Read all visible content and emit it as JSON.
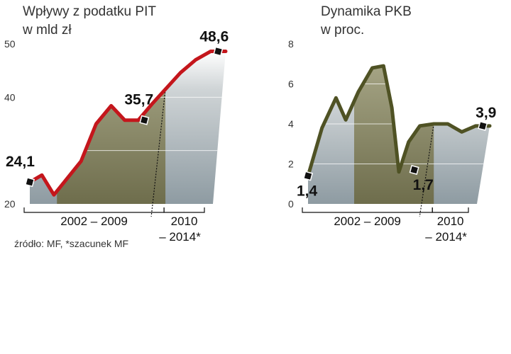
{
  "source_note": "źródło: MF, *szacunek MF",
  "chart_data": [
    {
      "type": "line",
      "title_lines": [
        "Wpływy z podatku PIT",
        "w mld zł"
      ],
      "ylim": [
        20,
        50
      ],
      "yticks": [
        20,
        30,
        40,
        50
      ],
      "ytick_labels": [
        "20",
        "",
        "40",
        "50"
      ],
      "line_color": "#c4161c",
      "periods": [
        {
          "label_lines": [
            "2002 – 2009"
          ],
          "x_range": [
            0,
            9
          ]
        },
        {
          "label_lines": [
            "2010",
            "– 2014*"
          ],
          "x_range": [
            9,
            13
          ]
        }
      ],
      "area_breaks": [
        [
          1.8,
          9
        ]
      ],
      "series": [
        {
          "x": [
            0,
            0.8,
            1.6,
            2.4,
            3.4,
            4.4,
            5.4,
            6.3,
            7.2,
            8.1,
            9,
            10,
            11,
            12,
            13
          ],
          "y": [
            24.1,
            25.4,
            21.7,
            24.5,
            28,
            35,
            38.4,
            35.7,
            35.7,
            38.7,
            41.5,
            44.6,
            47,
            48.6,
            48.6
          ]
        }
      ],
      "data_labels": [
        {
          "x": 0,
          "y": 24.1,
          "text": "24,1"
        },
        {
          "x": 7.6,
          "y": 35.7,
          "text": "35,7"
        },
        {
          "x": 12.5,
          "y": 48.6,
          "text": "48,6"
        }
      ]
    },
    {
      "type": "line",
      "title_lines": [
        "Dynamika PKB",
        "w proc."
      ],
      "ylim": [
        0,
        8
      ],
      "yticks": [
        0,
        2,
        4,
        6,
        8
      ],
      "ytick_labels": [
        "0",
        "2",
        "4",
        "6",
        "8"
      ],
      "line_color": "#4f5224",
      "periods": [
        {
          "label_lines": [
            "2002 – 2009"
          ],
          "x_range": [
            0,
            9
          ]
        },
        {
          "label_lines": [
            "2010",
            "– 2014*"
          ],
          "x_range": [
            9,
            13
          ]
        }
      ],
      "area_breaks": [
        [
          3.3,
          9
        ]
      ],
      "series": [
        {
          "x": [
            0,
            1,
            2,
            2.7,
            3.6,
            4.6,
            5.4,
            6,
            6.5,
            7.2,
            8,
            9,
            10,
            11,
            12,
            13
          ],
          "y": [
            1.4,
            3.8,
            5.3,
            4.2,
            5.6,
            6.8,
            6.9,
            4.8,
            1.6,
            3.1,
            3.9,
            4,
            4,
            3.6,
            3.9,
            3.9
          ]
        }
      ],
      "data_labels": [
        {
          "x": 0,
          "y": 1.4,
          "text": "1,4"
        },
        {
          "x": 7.6,
          "y": 1.7,
          "text": "1,7"
        },
        {
          "x": 12.5,
          "y": 3.9,
          "text": "3,9"
        }
      ]
    }
  ]
}
